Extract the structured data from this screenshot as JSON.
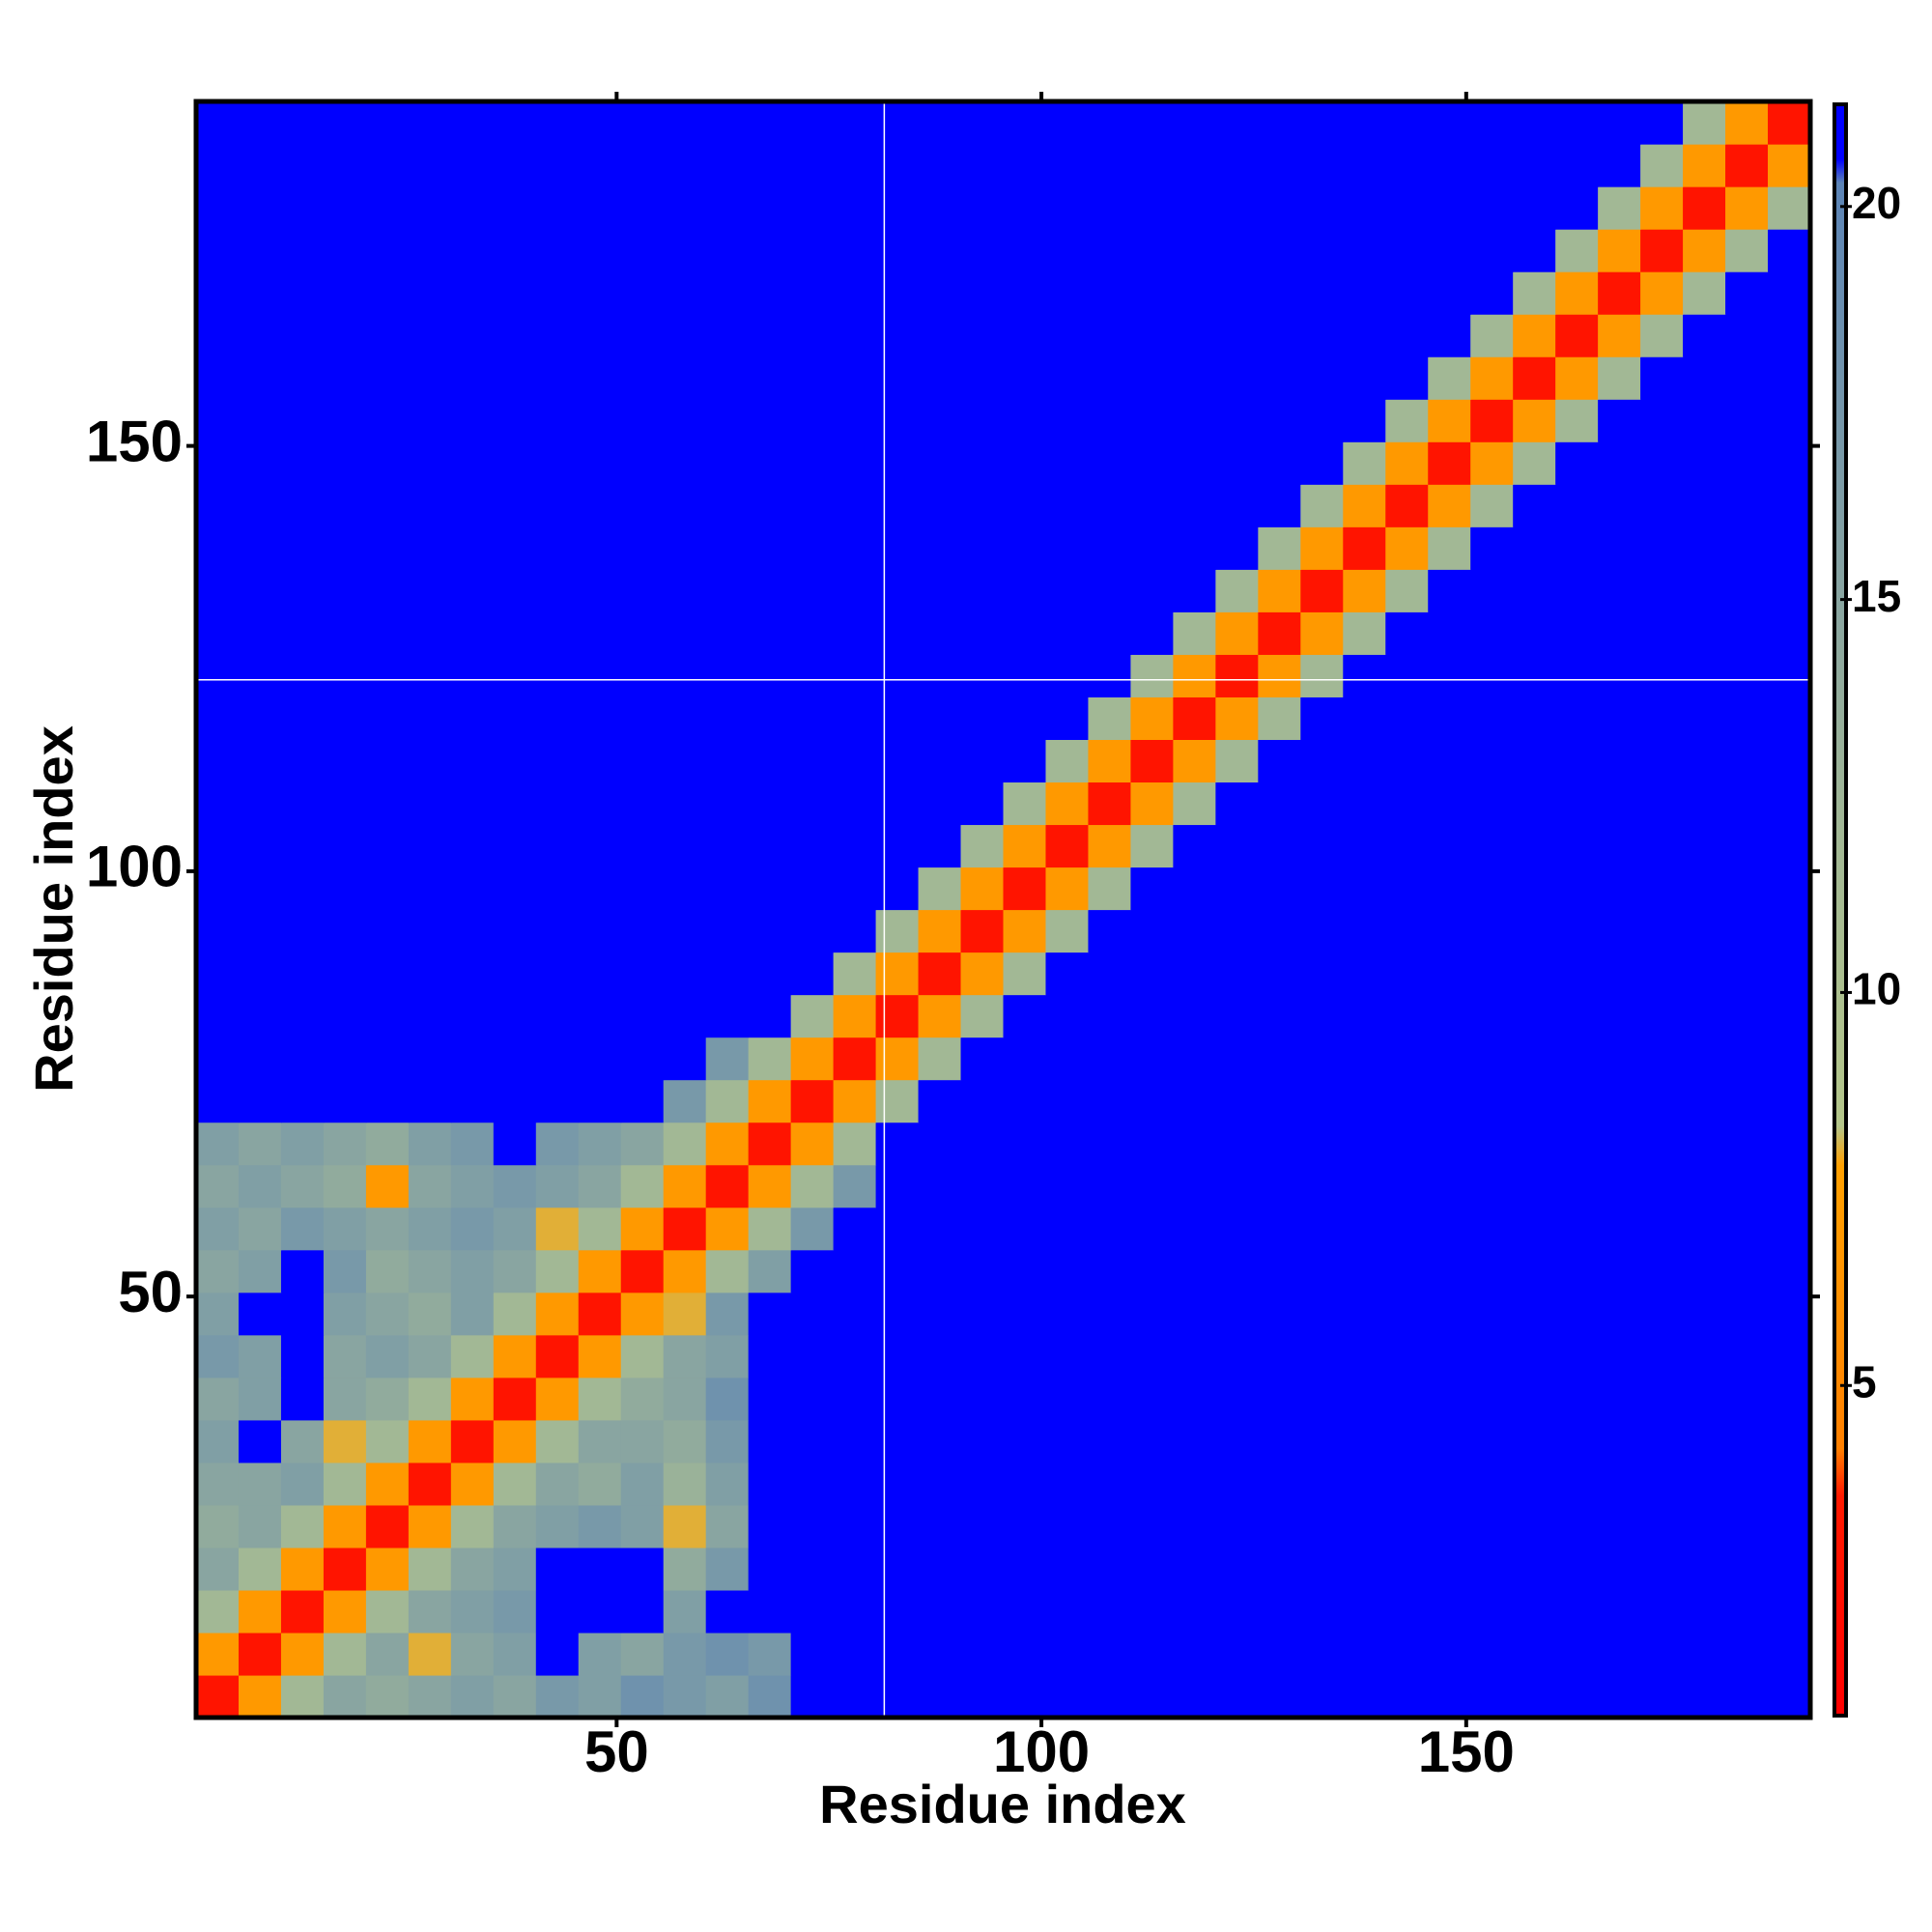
{
  "chart_data": {
    "type": "heatmap",
    "xlabel": "Residue index",
    "ylabel": "Residue index",
    "xlim": [
      0.5,
      190.5
    ],
    "ylim": [
      0.5,
      190.5
    ],
    "xticks": [
      50,
      100,
      150
    ],
    "yticks": [
      50,
      100,
      150
    ],
    "clim": [
      0.8,
      21.3
    ],
    "cticks": [
      5,
      10,
      15,
      20
    ],
    "colorscale": [
      [
        0.8,
        "#ff0000"
      ],
      [
        3.6,
        "#ff1a00"
      ],
      [
        4.2,
        "#ff8000"
      ],
      [
        7.8,
        "#ffa000"
      ],
      [
        8.3,
        "#b4c68a"
      ],
      [
        12,
        "#a2b895"
      ],
      [
        20.3,
        "#5c84b6"
      ],
      [
        20.6,
        "#0000ff"
      ],
      [
        21.3,
        "#0000ff"
      ]
    ],
    "vlines": [
      81.5
    ],
    "hlines": [
      122.5
    ],
    "line_color": "#ffffff",
    "z": [
      [
        3,
        7,
        12,
        15,
        14,
        15,
        16,
        15,
        17,
        16,
        18,
        17,
        16,
        18,
        21,
        21,
        21,
        21,
        21,
        21,
        21,
        21,
        21,
        21,
        21,
        21,
        21,
        21,
        21,
        21,
        21,
        21,
        21,
        21,
        21,
        21,
        21,
        21
      ],
      [
        7,
        3,
        7,
        12,
        15,
        8,
        15,
        16,
        21,
        16,
        15,
        17,
        18,
        17,
        21,
        21,
        21,
        21,
        21,
        21,
        21,
        21,
        21,
        21,
        21,
        21,
        21,
        21,
        21,
        21,
        21,
        21,
        21,
        21,
        21,
        21,
        21,
        21
      ],
      [
        12,
        7,
        3,
        7,
        12,
        15,
        16,
        17,
        21,
        21,
        21,
        16,
        21,
        21,
        21,
        21,
        21,
        21,
        21,
        21,
        21,
        21,
        21,
        21,
        21,
        21,
        21,
        21,
        21,
        21,
        21,
        21,
        21,
        21,
        21,
        21,
        21,
        21
      ],
      [
        15,
        12,
        7,
        3,
        7,
        12,
        15,
        16,
        21,
        21,
        21,
        14,
        17,
        21,
        21,
        21,
        21,
        21,
        21,
        21,
        21,
        21,
        21,
        21,
        21,
        21,
        21,
        21,
        21,
        21,
        21,
        21,
        21,
        21,
        21,
        21,
        21,
        21
      ],
      [
        14,
        15,
        12,
        7,
        3,
        7,
        12,
        15,
        16,
        17,
        16,
        8,
        15,
        21,
        21,
        21,
        21,
        21,
        21,
        21,
        21,
        21,
        21,
        21,
        21,
        21,
        21,
        21,
        21,
        21,
        21,
        21,
        21,
        21,
        21,
        21,
        21,
        21
      ],
      [
        15,
        15,
        16,
        12,
        7,
        3,
        7,
        12,
        15,
        14,
        16,
        13,
        16,
        21,
        21,
        21,
        21,
        21,
        21,
        21,
        21,
        21,
        21,
        21,
        21,
        21,
        21,
        21,
        21,
        21,
        21,
        21,
        21,
        21,
        21,
        21,
        21,
        21
      ],
      [
        16,
        21,
        15,
        8,
        12,
        7,
        3,
        7,
        12,
        15,
        15,
        14,
        17,
        21,
        21,
        21,
        21,
        21,
        21,
        21,
        21,
        21,
        21,
        21,
        21,
        21,
        21,
        21,
        21,
        21,
        21,
        21,
        21,
        21,
        21,
        21,
        21,
        21
      ],
      [
        15,
        16,
        21,
        15,
        14,
        12,
        7,
        3,
        7,
        12,
        14,
        15,
        18,
        21,
        21,
        21,
        21,
        21,
        21,
        21,
        21,
        21,
        21,
        21,
        21,
        21,
        21,
        21,
        21,
        21,
        21,
        21,
        21,
        21,
        21,
        21,
        21,
        21
      ],
      [
        17,
        16,
        21,
        15,
        16,
        15,
        12,
        7,
        3,
        7,
        12,
        15,
        16,
        21,
        21,
        21,
        21,
        21,
        21,
        21,
        21,
        21,
        21,
        21,
        21,
        21,
        21,
        21,
        21,
        21,
        21,
        21,
        21,
        21,
        21,
        21,
        21,
        21
      ],
      [
        16,
        21,
        21,
        16,
        15,
        14,
        16,
        12,
        7,
        3,
        7,
        8,
        17,
        21,
        21,
        21,
        21,
        21,
        21,
        21,
        21,
        21,
        21,
        21,
        21,
        21,
        21,
        21,
        21,
        21,
        21,
        21,
        21,
        21,
        21,
        21,
        21,
        21
      ],
      [
        15,
        16,
        21,
        17,
        14,
        15,
        16,
        15,
        12,
        7,
        3,
        7,
        12,
        16,
        21,
        21,
        21,
        21,
        21,
        21,
        21,
        21,
        21,
        21,
        21,
        21,
        21,
        21,
        21,
        21,
        21,
        21,
        21,
        21,
        21,
        21,
        21,
        21
      ],
      [
        16,
        15,
        17,
        16,
        15,
        16,
        17,
        16,
        8,
        12,
        7,
        3,
        7,
        12,
        17,
        21,
        21,
        21,
        21,
        21,
        21,
        21,
        21,
        21,
        21,
        21,
        21,
        21,
        21,
        21,
        21,
        21,
        21,
        21,
        21,
        21,
        21,
        21
      ],
      [
        15,
        16,
        15,
        14,
        7,
        15,
        16,
        17,
        16,
        15,
        12,
        7,
        3,
        7,
        12,
        17,
        21,
        21,
        21,
        21,
        21,
        21,
        21,
        21,
        21,
        21,
        21,
        21,
        21,
        21,
        21,
        21,
        21,
        21,
        21,
        21,
        21,
        21
      ],
      [
        16,
        15,
        16,
        15,
        14,
        16,
        17,
        21,
        17,
        16,
        15,
        12,
        7,
        3,
        7,
        12,
        21,
        21,
        21,
        21,
        21,
        21,
        21,
        21,
        21,
        21,
        21,
        21,
        21,
        21,
        21,
        21,
        21,
        21,
        21,
        21,
        21,
        21
      ],
      [
        21,
        21,
        21,
        21,
        21,
        21,
        21,
        21,
        21,
        21,
        21,
        17,
        12,
        7,
        3,
        7,
        12,
        21,
        21,
        21,
        21,
        21,
        21,
        21,
        21,
        21,
        21,
        21,
        21,
        21,
        21,
        21,
        21,
        21,
        21,
        21,
        21,
        21
      ],
      [
        21,
        21,
        21,
        21,
        21,
        21,
        21,
        21,
        21,
        21,
        21,
        21,
        17,
        12,
        7,
        3,
        7,
        12,
        21,
        21,
        21,
        21,
        21,
        21,
        21,
        21,
        21,
        21,
        21,
        21,
        21,
        21,
        21,
        21,
        21,
        21,
        21,
        21
      ],
      [
        21,
        21,
        21,
        21,
        21,
        21,
        21,
        21,
        21,
        21,
        21,
        21,
        21,
        21,
        12,
        7,
        3,
        7,
        12,
        21,
        21,
        21,
        21,
        21,
        21,
        21,
        21,
        21,
        21,
        21,
        21,
        21,
        21,
        21,
        21,
        21,
        21,
        21
      ],
      [
        21,
        21,
        21,
        21,
        21,
        21,
        21,
        21,
        21,
        21,
        21,
        21,
        21,
        21,
        21,
        12,
        7,
        3,
        7,
        12,
        21,
        21,
        21,
        21,
        21,
        21,
        21,
        21,
        21,
        21,
        21,
        21,
        21,
        21,
        21,
        21,
        21,
        21
      ],
      [
        21,
        21,
        21,
        21,
        21,
        21,
        21,
        21,
        21,
        21,
        21,
        21,
        21,
        21,
        21,
        21,
        12,
        7,
        3,
        7,
        12,
        21,
        21,
        21,
        21,
        21,
        21,
        21,
        21,
        21,
        21,
        21,
        21,
        21,
        21,
        21,
        21,
        21
      ],
      [
        21,
        21,
        21,
        21,
        21,
        21,
        21,
        21,
        21,
        21,
        21,
        21,
        21,
        21,
        21,
        21,
        21,
        12,
        7,
        3,
        7,
        12,
        21,
        21,
        21,
        21,
        21,
        21,
        21,
        21,
        21,
        21,
        21,
        21,
        21,
        21,
        21,
        21
      ],
      [
        21,
        21,
        21,
        21,
        21,
        21,
        21,
        21,
        21,
        21,
        21,
        21,
        21,
        21,
        21,
        21,
        21,
        21,
        12,
        7,
        3,
        7,
        12,
        21,
        21,
        21,
        21,
        21,
        21,
        21,
        21,
        21,
        21,
        21,
        21,
        21,
        21,
        21
      ],
      [
        21,
        21,
        21,
        21,
        21,
        21,
        21,
        21,
        21,
        21,
        21,
        21,
        21,
        21,
        21,
        21,
        21,
        21,
        21,
        12,
        7,
        3,
        7,
        12,
        21,
        21,
        21,
        21,
        21,
        21,
        21,
        21,
        21,
        21,
        21,
        21,
        21,
        21
      ],
      [
        21,
        21,
        21,
        21,
        21,
        21,
        21,
        21,
        21,
        21,
        21,
        21,
        21,
        21,
        21,
        21,
        21,
        21,
        21,
        21,
        12,
        7,
        3,
        7,
        12,
        21,
        21,
        21,
        21,
        21,
        21,
        21,
        21,
        21,
        21,
        21,
        21,
        21
      ],
      [
        21,
        21,
        21,
        21,
        21,
        21,
        21,
        21,
        21,
        21,
        21,
        21,
        21,
        21,
        21,
        21,
        21,
        21,
        21,
        21,
        21,
        12,
        7,
        3,
        7,
        12,
        21,
        21,
        21,
        21,
        21,
        21,
        21,
        21,
        21,
        21,
        21,
        21
      ],
      [
        21,
        21,
        21,
        21,
        21,
        21,
        21,
        21,
        21,
        21,
        21,
        21,
        21,
        21,
        21,
        21,
        21,
        21,
        21,
        21,
        21,
        21,
        12,
        7,
        3,
        7,
        12,
        21,
        21,
        21,
        21,
        21,
        21,
        21,
        21,
        21,
        21,
        21
      ],
      [
        21,
        21,
        21,
        21,
        21,
        21,
        21,
        21,
        21,
        21,
        21,
        21,
        21,
        21,
        21,
        21,
        21,
        21,
        21,
        21,
        21,
        21,
        21,
        12,
        7,
        3,
        7,
        12,
        21,
        21,
        21,
        21,
        21,
        21,
        21,
        21,
        21,
        21
      ],
      [
        21,
        21,
        21,
        21,
        21,
        21,
        21,
        21,
        21,
        21,
        21,
        21,
        21,
        21,
        21,
        21,
        21,
        21,
        21,
        21,
        21,
        21,
        21,
        21,
        12,
        7,
        3,
        7,
        12,
        21,
        21,
        21,
        21,
        21,
        21,
        21,
        21,
        21
      ],
      [
        21,
        21,
        21,
        21,
        21,
        21,
        21,
        21,
        21,
        21,
        21,
        21,
        21,
        21,
        21,
        21,
        21,
        21,
        21,
        21,
        21,
        21,
        21,
        21,
        21,
        12,
        7,
        3,
        7,
        12,
        21,
        21,
        21,
        21,
        21,
        21,
        21,
        21
      ],
      [
        21,
        21,
        21,
        21,
        21,
        21,
        21,
        21,
        21,
        21,
        21,
        21,
        21,
        21,
        21,
        21,
        21,
        21,
        21,
        21,
        21,
        21,
        21,
        21,
        21,
        21,
        12,
        7,
        3,
        7,
        12,
        21,
        21,
        21,
        21,
        21,
        21,
        21
      ],
      [
        21,
        21,
        21,
        21,
        21,
        21,
        21,
        21,
        21,
        21,
        21,
        21,
        21,
        21,
        21,
        21,
        21,
        21,
        21,
        21,
        21,
        21,
        21,
        21,
        21,
        21,
        21,
        12,
        7,
        3,
        7,
        12,
        21,
        21,
        21,
        21,
        21,
        21
      ],
      [
        21,
        21,
        21,
        21,
        21,
        21,
        21,
        21,
        21,
        21,
        21,
        21,
        21,
        21,
        21,
        21,
        21,
        21,
        21,
        21,
        21,
        21,
        21,
        21,
        21,
        21,
        21,
        21,
        12,
        7,
        3,
        7,
        12,
        21,
        21,
        21,
        21,
        21
      ],
      [
        21,
        21,
        21,
        21,
        21,
        21,
        21,
        21,
        21,
        21,
        21,
        21,
        21,
        21,
        21,
        21,
        21,
        21,
        21,
        21,
        21,
        21,
        21,
        21,
        21,
        21,
        21,
        21,
        21,
        12,
        7,
        3,
        7,
        12,
        21,
        21,
        21,
        21
      ],
      [
        21,
        21,
        21,
        21,
        21,
        21,
        21,
        21,
        21,
        21,
        21,
        21,
        21,
        21,
        21,
        21,
        21,
        21,
        21,
        21,
        21,
        21,
        21,
        21,
        21,
        21,
        21,
        21,
        21,
        21,
        12,
        7,
        3,
        7,
        12,
        21,
        21,
        21
      ],
      [
        21,
        21,
        21,
        21,
        21,
        21,
        21,
        21,
        21,
        21,
        21,
        21,
        21,
        21,
        21,
        21,
        21,
        21,
        21,
        21,
        21,
        21,
        21,
        21,
        21,
        21,
        21,
        21,
        21,
        21,
        21,
        12,
        7,
        3,
        7,
        12,
        21,
        21
      ],
      [
        21,
        21,
        21,
        21,
        21,
        21,
        21,
        21,
        21,
        21,
        21,
        21,
        21,
        21,
        21,
        21,
        21,
        21,
        21,
        21,
        21,
        21,
        21,
        21,
        21,
        21,
        21,
        21,
        21,
        21,
        21,
        21,
        12,
        7,
        3,
        7,
        12,
        21
      ],
      [
        21,
        21,
        21,
        21,
        21,
        21,
        21,
        21,
        21,
        21,
        21,
        21,
        21,
        21,
        21,
        21,
        21,
        21,
        21,
        21,
        21,
        21,
        21,
        21,
        21,
        21,
        21,
        21,
        21,
        21,
        21,
        21,
        21,
        12,
        7,
        3,
        7,
        12
      ],
      [
        21,
        21,
        21,
        21,
        21,
        21,
        21,
        21,
        21,
        21,
        21,
        21,
        21,
        21,
        21,
        21,
        21,
        21,
        21,
        21,
        21,
        21,
        21,
        21,
        21,
        21,
        21,
        21,
        21,
        21,
        21,
        21,
        21,
        21,
        12,
        7,
        3,
        7
      ],
      [
        21,
        21,
        21,
        21,
        21,
        21,
        21,
        21,
        21,
        21,
        21,
        21,
        21,
        21,
        21,
        21,
        21,
        21,
        21,
        21,
        21,
        21,
        21,
        21,
        21,
        21,
        21,
        21,
        21,
        21,
        21,
        21,
        21,
        21,
        21,
        12,
        7,
        3
      ]
    ]
  }
}
